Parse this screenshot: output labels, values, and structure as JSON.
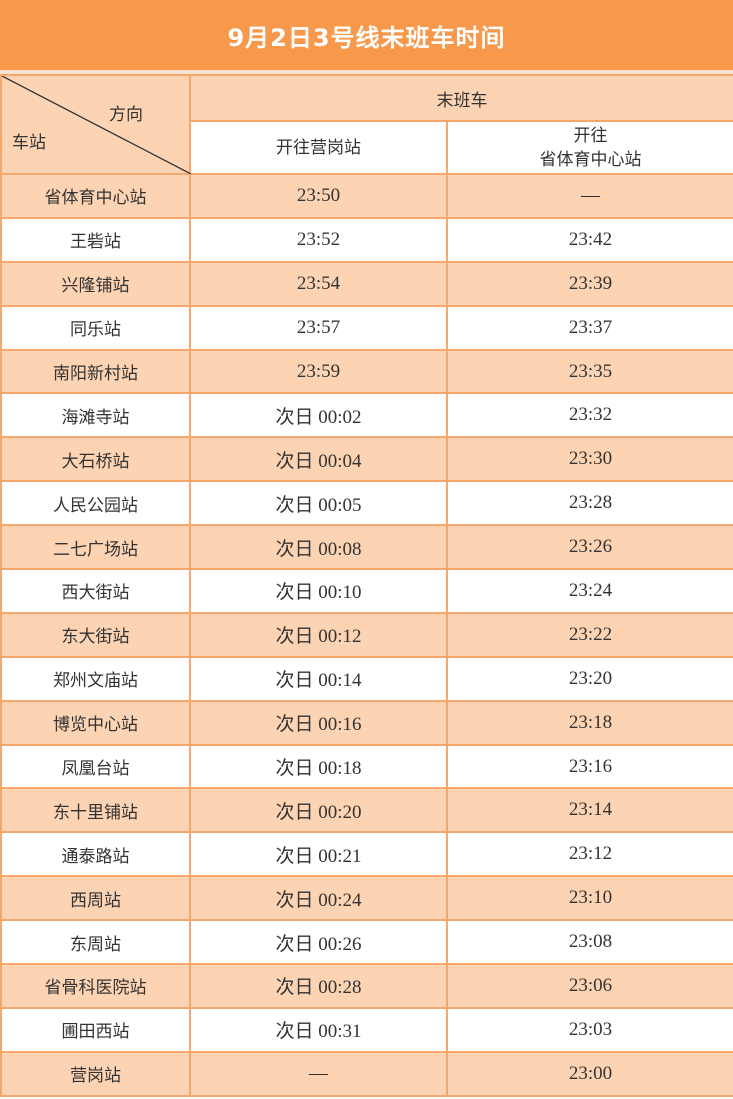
{
  "title": "9月2日3号线末班车时间",
  "header": {
    "direction_label": "方向",
    "station_label": "车站",
    "group_label": "末班车",
    "col1": "开往营岗站",
    "col2_line1": "开往",
    "col2_line2": "省体育中心站"
  },
  "rows": [
    [
      "省体育中心站",
      "23:50",
      "—"
    ],
    [
      "王砦站",
      "23:52",
      "23:42"
    ],
    [
      "兴隆铺站",
      "23:54",
      "23:39"
    ],
    [
      "同乐站",
      "23:57",
      "23:37"
    ],
    [
      "南阳新村站",
      "23:59",
      "23:35"
    ],
    [
      "海滩寺站",
      "次日 00:02",
      "23:32"
    ],
    [
      "大石桥站",
      "次日 00:04",
      "23:30"
    ],
    [
      "人民公园站",
      "次日 00:05",
      "23:28"
    ],
    [
      "二七广场站",
      "次日 00:08",
      "23:26"
    ],
    [
      "西大街站",
      "次日 00:10",
      "23:24"
    ],
    [
      "东大街站",
      "次日 00:12",
      "23:22"
    ],
    [
      "郑州文庙站",
      "次日 00:14",
      "23:20"
    ],
    [
      "博览中心站",
      "次日 00:16",
      "23:18"
    ],
    [
      "凤凰台站",
      "次日 00:18",
      "23:16"
    ],
    [
      "东十里铺站",
      "次日 00:20",
      "23:14"
    ],
    [
      "通泰路站",
      "次日 00:21",
      "23:12"
    ],
    [
      "西周站",
      "次日 00:24",
      "23:10"
    ],
    [
      "东周站",
      "次日 00:26",
      "23:08"
    ],
    [
      "省骨科医院站",
      "次日 00:28",
      "23:06"
    ],
    [
      "圃田西站",
      "次日 00:31",
      "23:03"
    ],
    [
      "营岗站",
      "—",
      "23:00"
    ]
  ],
  "colors": {
    "title_bg": "#F7984A",
    "row_alt": "#FCD3B3",
    "border": "#F5A86E"
  }
}
